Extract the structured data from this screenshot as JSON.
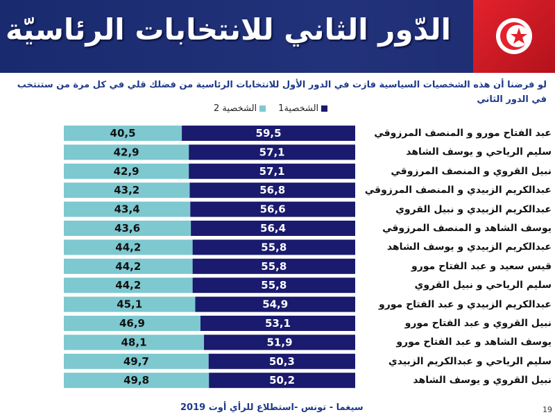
{
  "header": {
    "title": "الدّور الثاني للانتخابات الرئاسيّة"
  },
  "question": "لو فرضنا أن هذه الشخصيات السياسية فازت في الدور الأول للانتخابات الرئاسية  من فضلك قلي في كل مرة من ستنتخب في الدور الثاني",
  "footer": {
    "source": "سيغما - تونس  -استطلاع للرأي أوت  2019",
    "page_number": "19"
  },
  "chart_data": {
    "type": "bar",
    "orientation": "horizontal",
    "stacked": true,
    "legend_position": "top",
    "categories": [
      "عبد الفتاح مورو  و المنصف المرزوقي",
      "سليم الرياحي و يوسف الشاهد",
      "نبيل القروي و  المنصف المرزوقي",
      "عبدالكريم الزبيدي و المنصف المرزوقي",
      "عبدالكريم الزبيدي و  نبيل القروي",
      "يوسف الشاهد  و المنصف المرزوقي",
      "عبدالكريم الزبيدي و  يوسف الشاهد",
      "قيس سعيد   و   عبد الفتاح مورو",
      "سليم الرياحي   و   نبيل القروي",
      "عبدالكريم الزبيدي و  عبد الفتاح مورو",
      "نبيل القروي و عبد الفتاح مورو",
      "يوسف الشاهد  و  عبد الفتاح مورو",
      "سليم الرياحي و عبدالكريم الزبيدي",
      "نبيل القروي و يوسف الشاهد"
    ],
    "series": [
      {
        "name": "الشخصية1",
        "color": "#1a1a6e",
        "values": [
          59.5,
          57.1,
          57.1,
          56.8,
          56.6,
          56.4,
          55.8,
          55.8,
          55.8,
          54.9,
          53.1,
          51.9,
          50.3,
          50.2
        ],
        "labels": [
          "59,5",
          "57,1",
          "57,1",
          "56,8",
          "56,6",
          "56,4",
          "55,8",
          "55,8",
          "55,8",
          "54,9",
          "53,1",
          "51,9",
          "50,3",
          "50,2"
        ]
      },
      {
        "name": "الشخصية 2",
        "color": "#7ec8d0",
        "values": [
          40.5,
          42.9,
          42.9,
          43.2,
          43.4,
          43.6,
          44.2,
          44.2,
          44.2,
          45.1,
          46.9,
          48.1,
          49.7,
          49.8
        ],
        "labels": [
          "40,5",
          "42,9",
          "42,9",
          "43,2",
          "43,4",
          "43,6",
          "44,2",
          "44,2",
          "44,2",
          "45,1",
          "46,9",
          "48,1",
          "49,7",
          "49,8"
        ]
      }
    ],
    "xlim": [
      0,
      100
    ]
  }
}
